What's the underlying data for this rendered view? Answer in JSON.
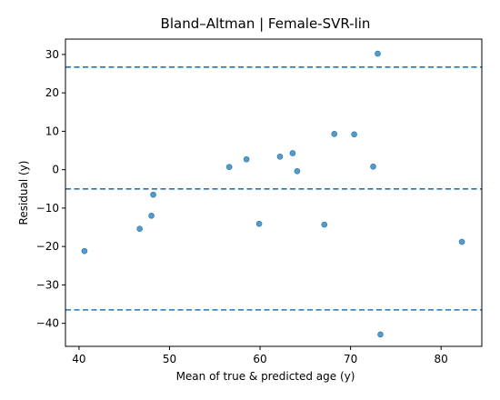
{
  "chart_data": {
    "type": "scatter",
    "title": "Bland–Altman | Female-SVR-lin",
    "xlabel": "Mean of true & predicted age (y)",
    "ylabel": "Residual (y)",
    "xlim": [
      38.5,
      84.5
    ],
    "ylim": [
      -46,
      34
    ],
    "xticks": [
      40,
      50,
      60,
      70,
      80
    ],
    "xtick_labels": [
      "40",
      "50",
      "60",
      "70",
      "80"
    ],
    "yticks": [
      -40,
      -30,
      -20,
      -10,
      0,
      10,
      20,
      30
    ],
    "ytick_labels": [
      "−40",
      "−30",
      "−20",
      "−10",
      "0",
      "10",
      "20",
      "30"
    ],
    "grid": false,
    "marker_color": "#1f77b4",
    "line_color": "#1f77b4",
    "hlines": [
      {
        "y": 26.7,
        "style": "dashed"
      },
      {
        "y": -5.0,
        "style": "dashed"
      },
      {
        "y": -36.5,
        "style": "dashed"
      }
    ],
    "points": [
      {
        "x": 40.6,
        "y": -21.2
      },
      {
        "x": 46.7,
        "y": -15.4
      },
      {
        "x": 48.0,
        "y": -12.0
      },
      {
        "x": 48.2,
        "y": -6.5
      },
      {
        "x": 56.6,
        "y": 0.7
      },
      {
        "x": 58.5,
        "y": 2.7
      },
      {
        "x": 59.9,
        "y": -14.1
      },
      {
        "x": 62.2,
        "y": 3.4
      },
      {
        "x": 63.6,
        "y": 4.3
      },
      {
        "x": 64.1,
        "y": -0.4
      },
      {
        "x": 67.1,
        "y": -14.3
      },
      {
        "x": 68.2,
        "y": 9.3
      },
      {
        "x": 70.4,
        "y": 9.2
      },
      {
        "x": 72.5,
        "y": 0.8
      },
      {
        "x": 73.0,
        "y": 30.2
      },
      {
        "x": 73.3,
        "y": -42.9
      },
      {
        "x": 82.3,
        "y": -18.8
      }
    ]
  }
}
